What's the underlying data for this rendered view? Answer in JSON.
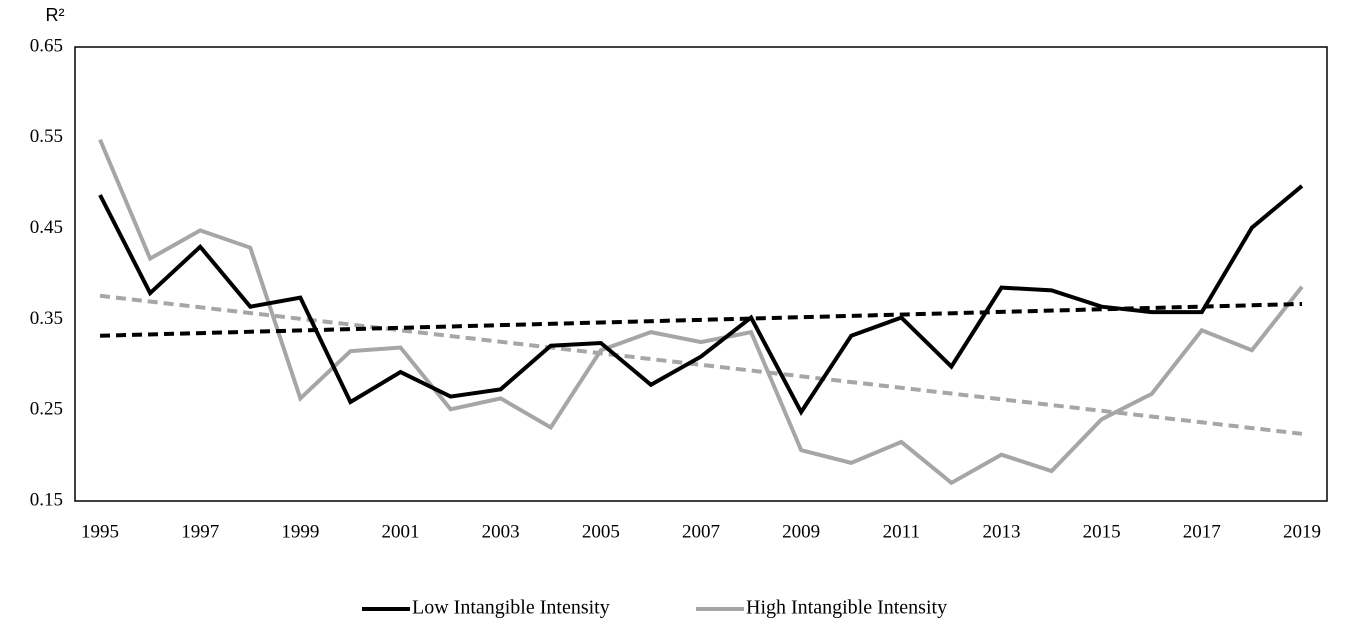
{
  "chart_data": {
    "type": "line",
    "y_label": "R²",
    "x": [
      1995,
      1996,
      1997,
      1998,
      1999,
      2000,
      2001,
      2002,
      2003,
      2004,
      2005,
      2006,
      2007,
      2008,
      2009,
      2010,
      2011,
      2012,
      2013,
      2014,
      2015,
      2016,
      2017,
      2018,
      2019
    ],
    "xlim": [
      1994.5,
      2019.5
    ],
    "xticks": [
      1995,
      1997,
      1999,
      2001,
      2003,
      2005,
      2007,
      2009,
      2011,
      2013,
      2015,
      2017,
      2019
    ],
    "ylim": [
      0.15,
      0.65
    ],
    "yticks": [
      0.15,
      0.25,
      0.35,
      0.45,
      0.55,
      0.65
    ],
    "legend": "bottom",
    "series": [
      {
        "name": "Low Intangible Intensity",
        "color": "#000000",
        "values": [
          0.487,
          0.379,
          0.43,
          0.364,
          0.374,
          0.259,
          0.292,
          0.265,
          0.273,
          0.321,
          0.324,
          0.278,
          0.309,
          0.352,
          0.248,
          0.332,
          0.352,
          0.298,
          0.385,
          0.382,
          0.364,
          0.358,
          0.358,
          0.451,
          0.497
        ],
        "trendline": [
          0.332,
          0.367
        ]
      },
      {
        "name": "High Intangible Intensity",
        "color": "#a6a6a6",
        "values": [
          0.548,
          0.417,
          0.448,
          0.429,
          0.263,
          0.315,
          0.319,
          0.251,
          0.263,
          0.231,
          0.316,
          0.336,
          0.325,
          0.336,
          0.206,
          0.192,
          0.215,
          0.17,
          0.201,
          0.183,
          0.24,
          0.268,
          0.338,
          0.316,
          0.386
        ],
        "trendline": [
          0.376,
          0.224
        ]
      }
    ]
  }
}
